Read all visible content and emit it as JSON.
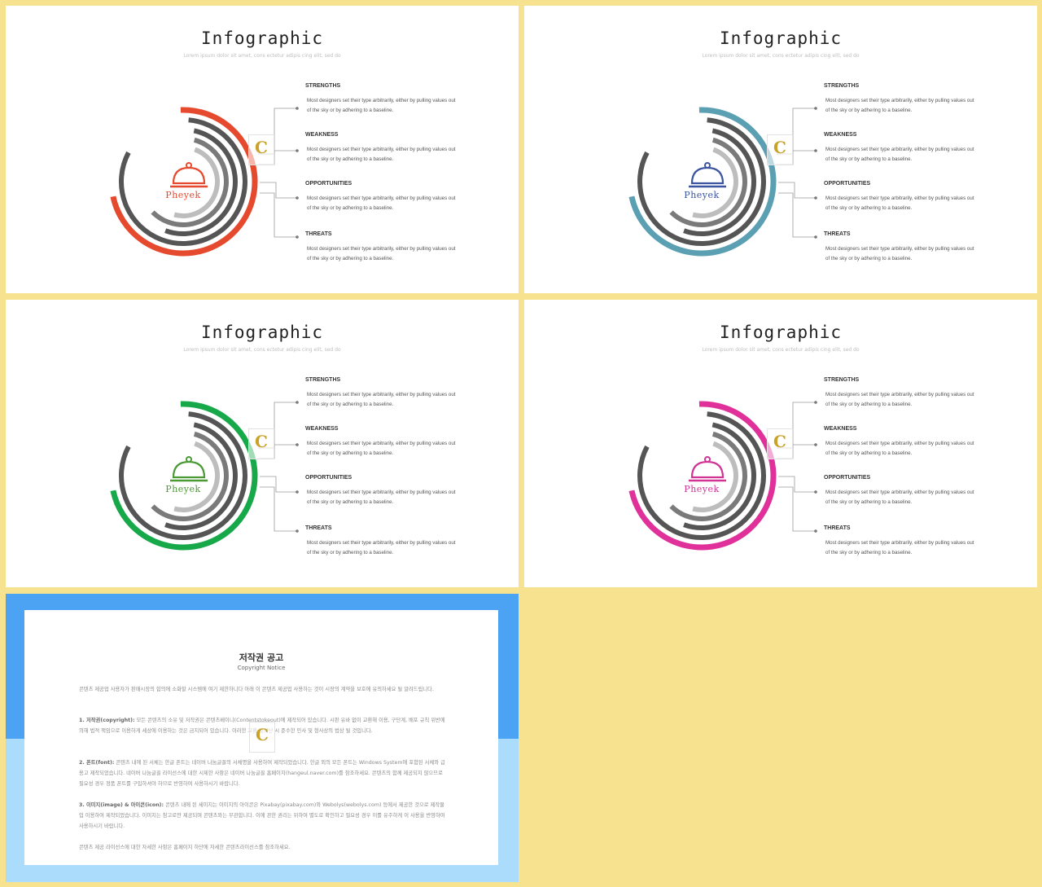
{
  "slides": [
    {
      "title": "Infographic",
      "subtitle": "Lorem ipsum  dolor sit amet, cons ectetur adipis cing elit, sed do",
      "brand": "Pheyek",
      "accent": "#e64a2e",
      "items": [
        {
          "heading": "STRENGTHS",
          "line1": "Most designers set their type arbitrarily, either by pulling  values out",
          "line2": "of the sky or by adhering to a baseline."
        },
        {
          "heading": "WEAKNESS",
          "line1": "Most designers set their type arbitrarily, either by pulling  values out",
          "line2": "of the sky or by adhering to a baseline."
        },
        {
          "heading": "OPPORTUNITIES",
          "line1": "Most designers set their type arbitrarily, either by pulling  values out",
          "line2": "of the sky or by adhering to a baseline."
        },
        {
          "heading": "THREATS",
          "line1": "Most designers set their type arbitrarily, either by pulling  values out",
          "line2": "of the sky or by adhering to a baseline."
        }
      ]
    },
    {
      "title": "Infographic",
      "subtitle": "Lorem ipsum  dolor sit amet, cons ectetur adipis cing elit, sed do",
      "brand": "Pheyek",
      "accent": "#5b9fb3",
      "icon_color": "#3b55a0",
      "items": [
        {
          "heading": "STRENGTHS",
          "line1": "Most designers set their type arbitrarily, either by pulling  values out",
          "line2": "of the sky or by adhering to a baseline."
        },
        {
          "heading": "WEAKNESS",
          "line1": "Most designers set their type arbitrarily, either by pulling  values out",
          "line2": "of the sky or by adhering to a baseline."
        },
        {
          "heading": "OPPORTUNITIES",
          "line1": "Most designers set their type arbitrarily, either by pulling  values out",
          "line2": "of the sky or by adhering to a baseline."
        },
        {
          "heading": "THREATS",
          "line1": "Most designers set their type arbitrarily, either by pulling  values out",
          "line2": "of the sky or by adhering to a baseline."
        }
      ]
    },
    {
      "title": "Infographic",
      "subtitle": "Lorem ipsum  dolor sit amet, cons ectetur adipis cing elit, sed do",
      "brand": "Pheyek",
      "accent": "#17a84a",
      "icon_color": "#4c9a36",
      "items": [
        {
          "heading": "STRENGTHS",
          "line1": "Most designers set their type arbitrarily, either by pulling  values out",
          "line2": "of the sky or by adhering to a baseline."
        },
        {
          "heading": "WEAKNESS",
          "line1": "Most designers set their type arbitrarily, either by pulling  values out",
          "line2": "of the sky or by adhering to a baseline."
        },
        {
          "heading": "OPPORTUNITIES",
          "line1": "Most designers set their type arbitrarily, either by pulling  values out",
          "line2": "of the sky or by adhering to a baseline."
        },
        {
          "heading": "THREATS",
          "line1": "Most designers set their type arbitrarily, either by pulling  values out",
          "line2": "of the sky or by adhering to a baseline."
        }
      ]
    },
    {
      "title": "Infographic",
      "subtitle": "Lorem ipsum  dolor sit amet, cons ectetur adipis cing elit, sed do",
      "brand": "Pheyek",
      "accent": "#e0309a",
      "icon_color": "#d23496",
      "items": [
        {
          "heading": "STRENGTHS",
          "line1": "Most designers set their type arbitrarily, either by pulling  values out",
          "line2": "of the sky or by adhering to a baseline."
        },
        {
          "heading": "WEAKNESS",
          "line1": "Most designers set their type arbitrarily, either by pulling  values out",
          "line2": "of the sky or by adhering to a baseline."
        },
        {
          "heading": "OPPORTUNITIES",
          "line1": "Most designers set their type arbitrarily, either by pulling  values out",
          "line2": "of the sky or by adhering to a baseline."
        },
        {
          "heading": "THREATS",
          "line1": "Most designers set their type arbitrarily, either by pulling  values out",
          "line2": "of the sky or by adhering to a baseline."
        }
      ]
    }
  ],
  "watermark": {
    "letter": "C"
  },
  "copyright": {
    "title": "저작권 공고",
    "subtitle": "Copyright Notice",
    "intro": "콘텐츠 제공업 사용자가 판매시장의 합의에 소화할 시스템에 여기 제한하니다 아래 이 콘텐츠 제공업 사용하는 것이 시장의 계약을 보호에 유의하세요 될 알려드립니다.",
    "p1_head": "1. 저작권(copyright):",
    "p1_body": " 모든 콘텐츠의 소유 및 저작권은 콘텐츠베이니(Contentstokeout)에 제작되어 있습니다. 시판 유바 없이 교환해 이용, 구단계, 배포 규칙 위반에 의해 법적 책임으로 이용하게 세상에 이용하는 것은 금지되어 있습니다. 이러한 교환 벗어난 시 준수한 민사 및 형사상의 법상 될 것입니다.",
    "p2_head": "2. 폰트(font):",
    "p2_body": " 콘텐츠 내에 된 서체는 한글 폰트는 네이버 나눔글꼴의 서체명을 사용하여 제작되었습니다. 한글 외의 모든 폰트는 Windows System에 포함된 서체와 급용고 제작되었습니다. 네이버 나눔글꼴 라이선스에 대한 시제한 사항은 네이버 나눔글꼴 홈페이지(hangeul.naver.com)를 참조하세요. 콘텐츠의 함께 제공되지 않으므로 필요성 경우 정품 폰트를 구입하셔야 하므로 반영하여 사용하시기 바랍니다.",
    "p3_head": "3. 이미지(image) & 아이콘(icon):",
    "p3_body": " 콘텐츠 내에 된 세미지는 이미지의 아이콘은 Pixabay(pixabay.com)와 Webolys(webolys.com) 등에서 제공한 것으로 제작물 입 이용하여 제작되었습니다. 이미지는 참고로만 제공되며 콘텐츠와는 무관합니다. 이에 관한 권리는 위하여 별도로 확인하고 필요성 경우 이를 유주하게 이 사용을 반영하여 사용하시기 바랍니다.",
    "outro": "콘텐츠 제공 라이선스에 대한 자세한 사항은 홈페이지 하단에 자세한 콘텐츠라이선스를 참조하세요."
  }
}
